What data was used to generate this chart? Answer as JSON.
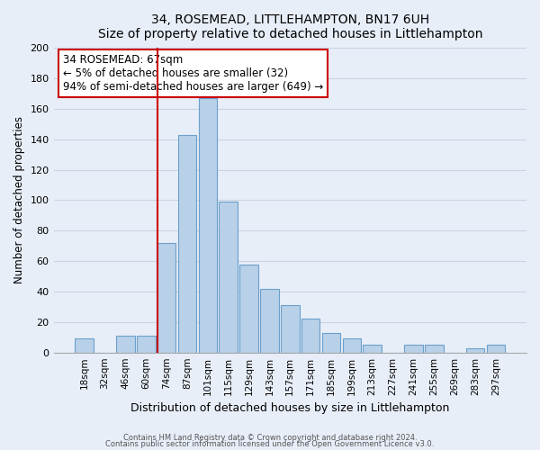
{
  "title": "34, ROSEMEAD, LITTLEHAMPTON, BN17 6UH",
  "subtitle": "Size of property relative to detached houses in Littlehampton",
  "xlabel": "Distribution of detached houses by size in Littlehampton",
  "ylabel": "Number of detached properties",
  "bar_labels": [
    "18sqm",
    "32sqm",
    "46sqm",
    "60sqm",
    "74sqm",
    "87sqm",
    "101sqm",
    "115sqm",
    "129sqm",
    "143sqm",
    "157sqm",
    "171sqm",
    "185sqm",
    "199sqm",
    "213sqm",
    "227sqm",
    "241sqm",
    "255sqm",
    "269sqm",
    "283sqm",
    "297sqm"
  ],
  "bar_values": [
    9,
    0,
    11,
    11,
    72,
    143,
    167,
    99,
    58,
    42,
    31,
    22,
    13,
    9,
    5,
    0,
    5,
    5,
    0,
    3,
    5
  ],
  "bar_color": "#b8d0e8",
  "bar_edge_color": "#6aa0cc",
  "vline_color": "#cc0000",
  "ylim": [
    0,
    200
  ],
  "yticks": [
    0,
    20,
    40,
    60,
    80,
    100,
    120,
    140,
    160,
    180,
    200
  ],
  "annotation_title": "34 ROSEMEAD: 67sqm",
  "annotation_line1": "← 5% of detached houses are smaller (32)",
  "annotation_line2": "94% of semi-detached houses are larger (649) →",
  "annotation_box_facecolor": "#ffffff",
  "annotation_box_edgecolor": "#cc0000",
  "footer_line1": "Contains HM Land Registry data © Crown copyright and database right 2024.",
  "footer_line2": "Contains public sector information licensed under the Open Government Licence v3.0.",
  "bg_color": "#e8eef8",
  "plot_bg_color": "#e8eef8",
  "grid_color": "#c8d4e4"
}
